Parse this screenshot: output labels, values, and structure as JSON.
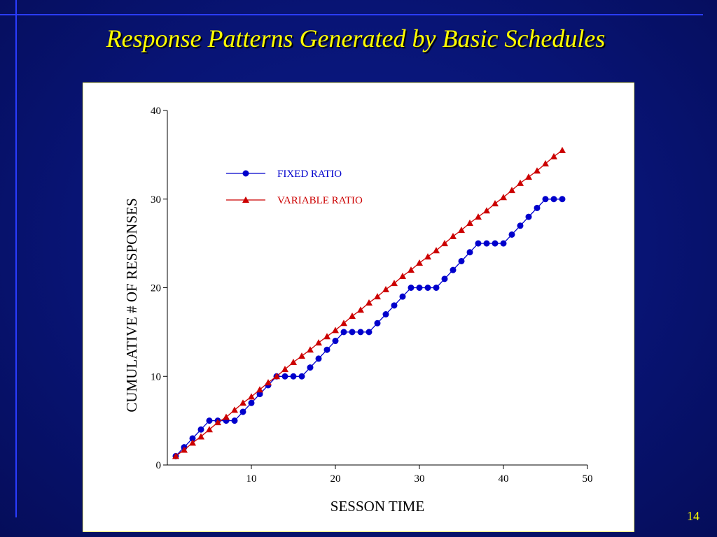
{
  "slide": {
    "title": "Response Patterns Generated by Basic Schedules",
    "number": "14",
    "accent_color": "#ffff00",
    "background_color": "#081475"
  },
  "chart_data": {
    "type": "line",
    "title": "",
    "xlabel": "SESSON TIME",
    "ylabel": "CUMULATIVE # OF RESPONSES",
    "xlim": [
      0,
      50
    ],
    "ylim": [
      0,
      40
    ],
    "xticks": [
      10,
      20,
      30,
      40,
      50
    ],
    "yticks": [
      0,
      10,
      20,
      30,
      40
    ],
    "grid": false,
    "legend_position": "upper-left",
    "series": [
      {
        "name": "FIXED RATIO",
        "color": "#0000cc",
        "marker": "circle",
        "x": [
          1,
          2,
          3,
          4,
          5,
          6,
          7,
          8,
          9,
          10,
          11,
          12,
          13,
          14,
          15,
          16,
          17,
          18,
          19,
          20,
          21,
          22,
          23,
          24,
          25,
          26,
          27,
          28,
          29,
          30,
          31,
          32,
          33,
          34,
          35,
          36,
          37,
          38,
          39,
          40,
          41,
          42,
          43,
          44,
          45,
          46,
          47
        ],
        "values": [
          1,
          2,
          3,
          4,
          5,
          5,
          5,
          5,
          6,
          7,
          8,
          9,
          10,
          10,
          10,
          10,
          11,
          12,
          13,
          14,
          15,
          15,
          15,
          15,
          16,
          17,
          18,
          19,
          20,
          20,
          20,
          20,
          21,
          22,
          23,
          24,
          25,
          25,
          25,
          25,
          26,
          27,
          28,
          29,
          30,
          30,
          30
        ]
      },
      {
        "name": "VARIABLE RATIO",
        "color": "#cc0000",
        "marker": "triangle",
        "x": [
          1,
          2,
          3,
          4,
          5,
          6,
          7,
          8,
          9,
          10,
          11,
          12,
          13,
          14,
          15,
          16,
          17,
          18,
          19,
          20,
          21,
          22,
          23,
          24,
          25,
          26,
          27,
          28,
          29,
          30,
          31,
          32,
          33,
          34,
          35,
          36,
          37,
          38,
          39,
          40,
          41,
          42,
          43,
          44,
          45,
          46,
          47
        ],
        "values": [
          1,
          1.7,
          2.5,
          3.2,
          4,
          4.8,
          5.4,
          6.2,
          7,
          7.7,
          8.5,
          9.3,
          10,
          10.8,
          11.6,
          12.3,
          13,
          13.8,
          14.5,
          15.2,
          16,
          16.8,
          17.5,
          18.3,
          19,
          19.8,
          20.5,
          21.3,
          22,
          22.8,
          23.5,
          24.2,
          25,
          25.8,
          26.5,
          27.3,
          28,
          28.7,
          29.5,
          30.2,
          31,
          31.8,
          32.5,
          33.2,
          34,
          34.8,
          35.5
        ]
      }
    ]
  }
}
